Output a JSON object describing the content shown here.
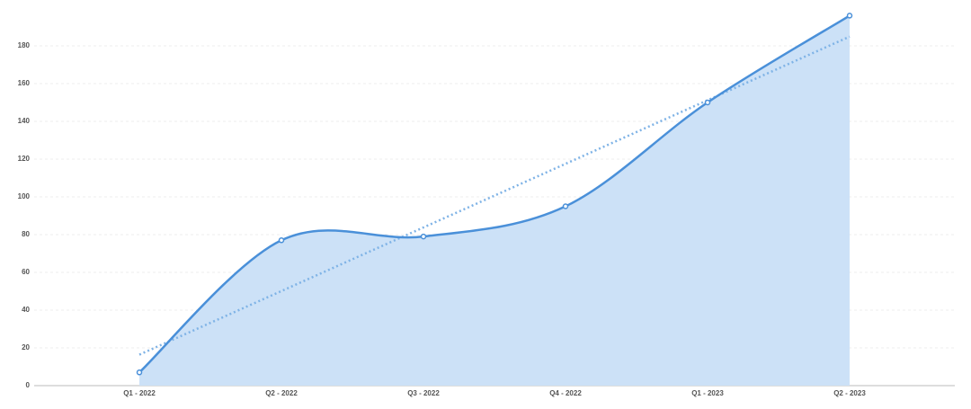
{
  "chart_data": {
    "type": "area",
    "categories": [
      "Q1 - 2022",
      "Q2 - 2022",
      "Q3 - 2022",
      "Q4 - 2022",
      "Q1 - 2023",
      "Q2 - 2023"
    ],
    "values": [
      7,
      77,
      79,
      95,
      150,
      196
    ],
    "color": "#4a90d9",
    "fill": "#cce1f7",
    "trend": {
      "values": [
        16.4,
        184.9
      ],
      "color": "#7fb3e6"
    },
    "ylim": [
      0,
      200
    ],
    "yticks": [
      0,
      20,
      40,
      60,
      80,
      100,
      120,
      140,
      160,
      180
    ],
    "grid": true
  }
}
